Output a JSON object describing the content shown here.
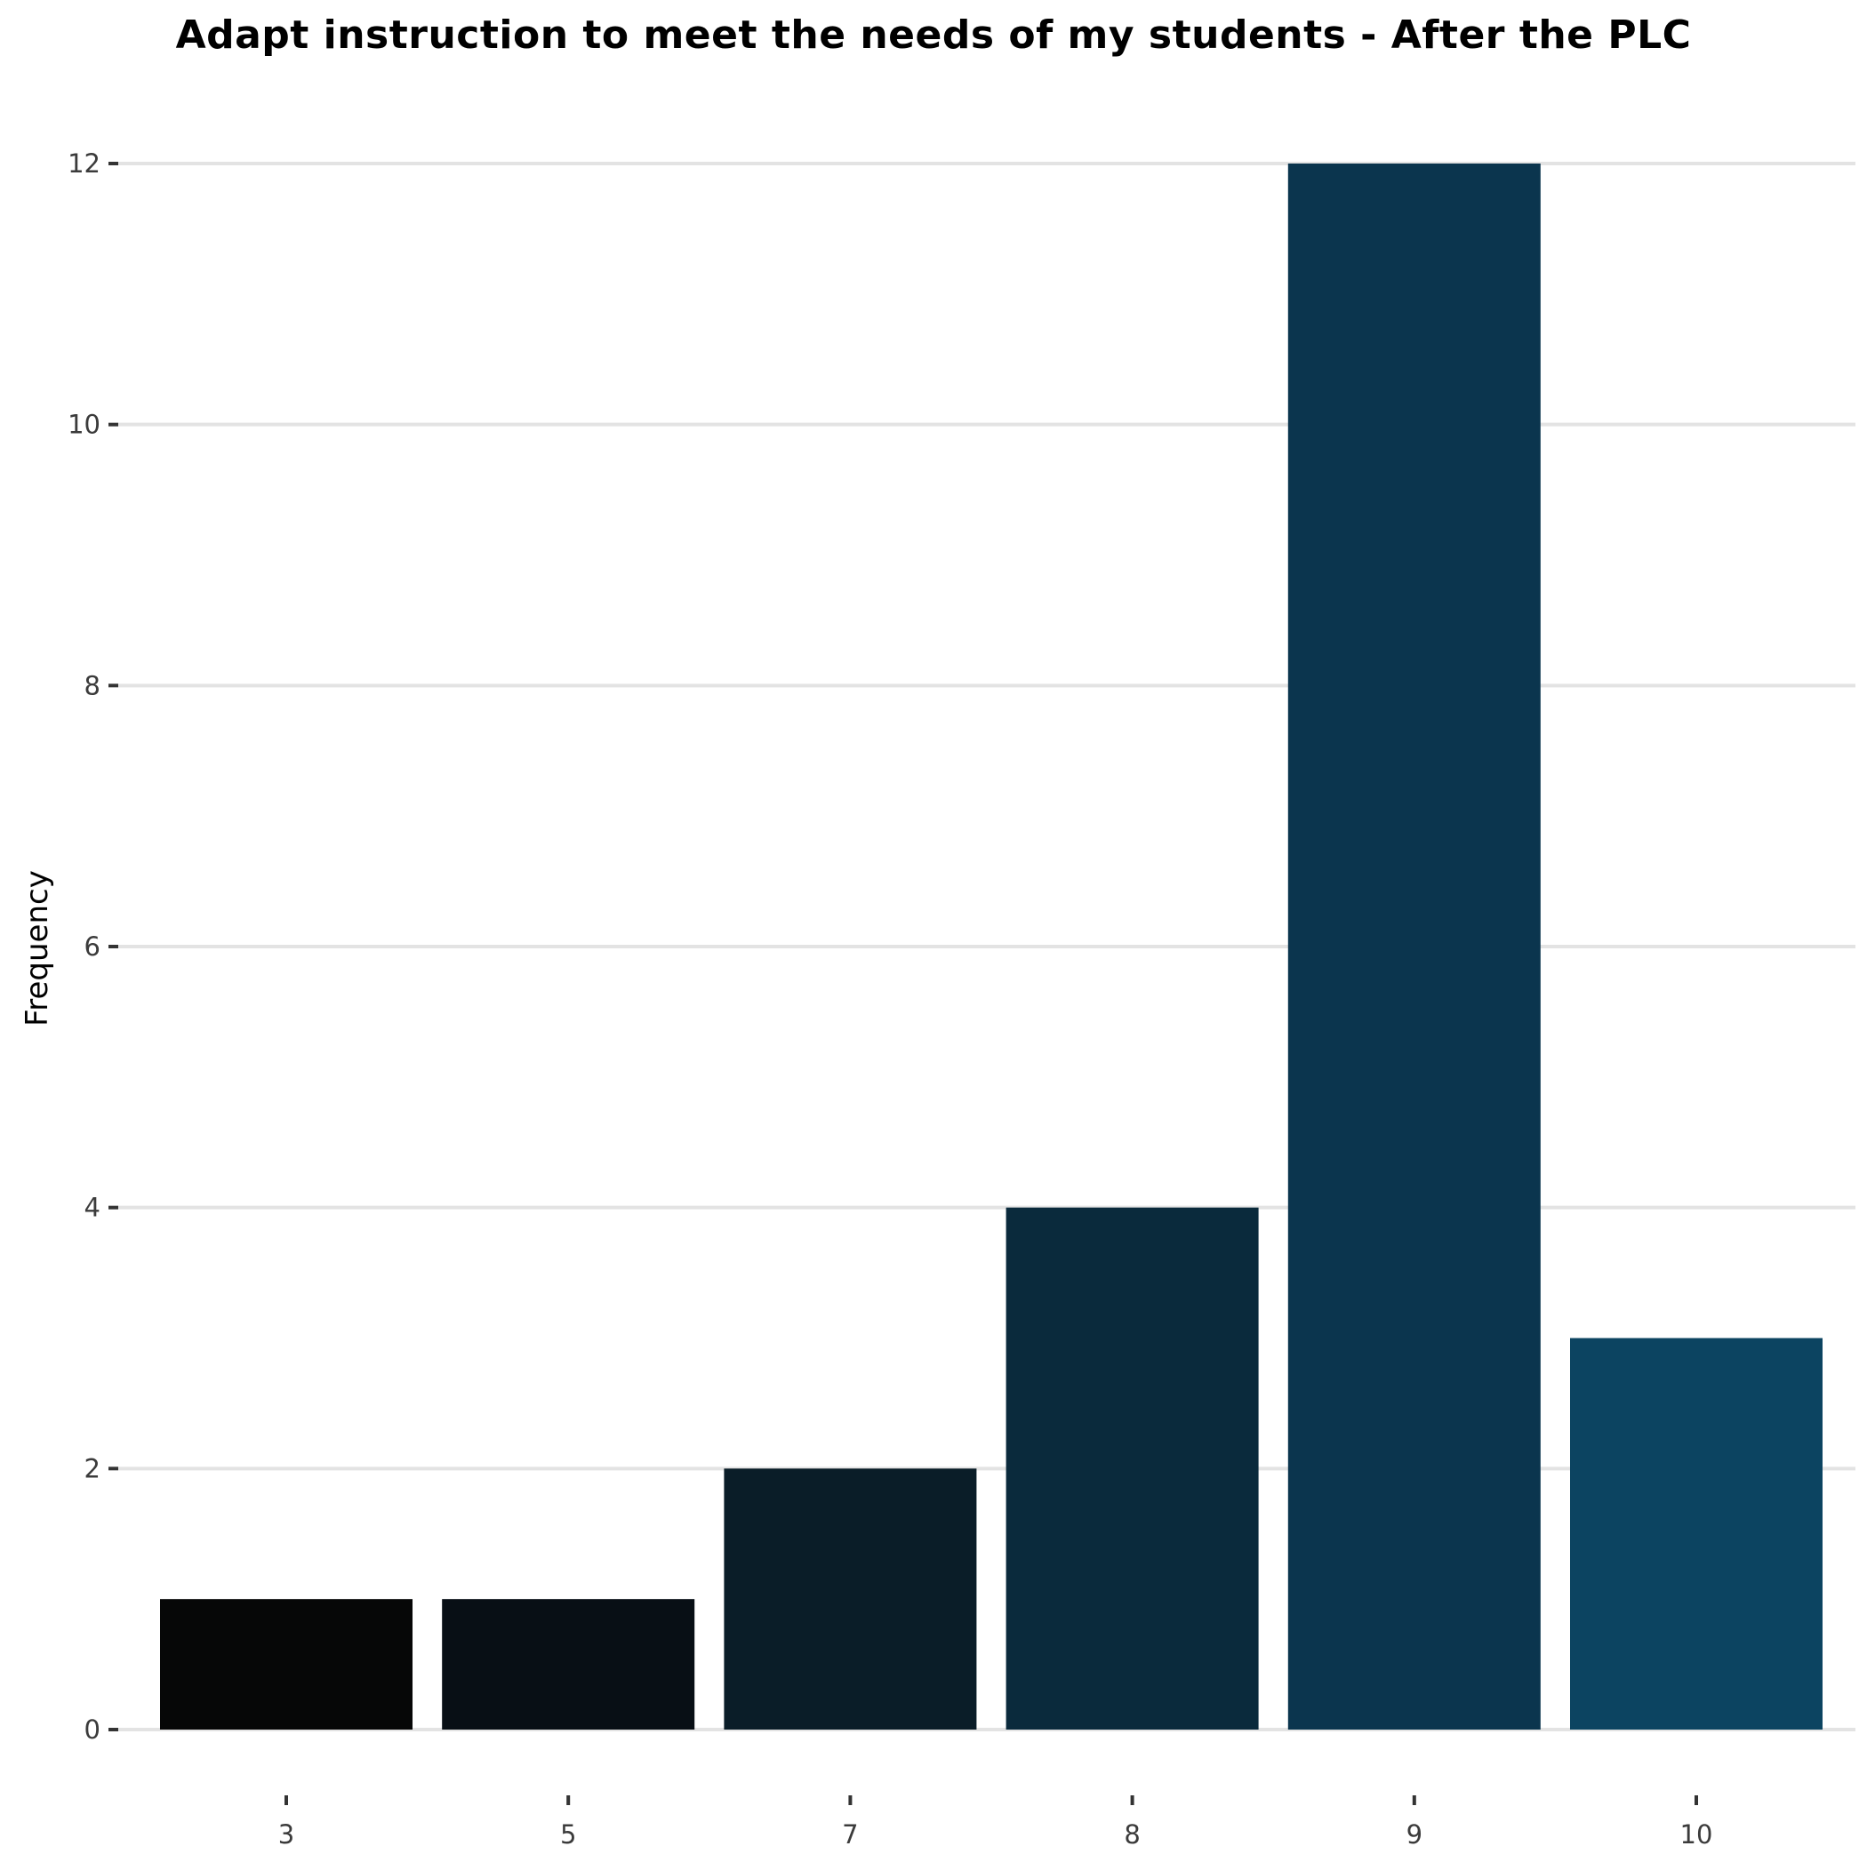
{
  "chart_data": {
    "type": "bar",
    "title": "Adapt instruction to meet the needs of my students - After the PLC",
    "xlabel": "",
    "ylabel": "Frequency",
    "categories": [
      "3",
      "5",
      "7",
      "8",
      "9",
      "10"
    ],
    "values": [
      1,
      1,
      2,
      4,
      12,
      3
    ],
    "ylim": [
      0,
      12
    ],
    "yticks": [
      "0",
      "2",
      "4",
      "6",
      "8",
      "10",
      "12"
    ],
    "grid": true,
    "legend": "none",
    "colors": [
      "#060707",
      "#080f15",
      "#0a1d28",
      "#0a2a3c",
      "#0b354e",
      "#0c4461"
    ],
    "gridline_color": "#e3e3e3",
    "tick_label_color": "#3b3b3b"
  }
}
